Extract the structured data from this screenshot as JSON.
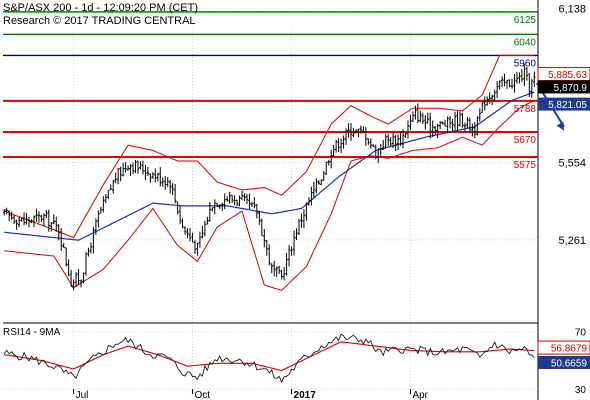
{
  "header": {
    "line1": "S&P/ASX 200 - 1d - 12:09:20 PM (CET)",
    "line2": "Research © 2017 TRADING CENTRAL"
  },
  "rsi_label": "RSI14 - 9MA",
  "colors": {
    "price": "#000000",
    "bollinger": "#d40000",
    "ma": "#1f2fa8",
    "resistance_green": "#008000",
    "pivot_blue": "#000080",
    "support_red": "#e00000",
    "arrow": "#1f3c8c",
    "grid": "#d8d8d8",
    "rsi_line": "#1a1a1a",
    "rsi_ma": "#d40000",
    "rsi_badge_red": "#d40000",
    "rsi_badge_blue": "#1f3c8c"
  },
  "chart_data": [
    {
      "type": "line",
      "name": "price",
      "ylim": [
        4950,
        6170
      ],
      "y_ticks": [
        {
          "value": 6138,
          "label": "6,138"
        },
        {
          "value": 5554,
          "label": "5,554"
        },
        {
          "value": 5261,
          "label": "5,261"
        }
      ],
      "x_ticks": [
        "Jul",
        "Oct",
        "2017",
        "Apr"
      ],
      "levels": [
        {
          "label": "6125",
          "value": 6125,
          "color": "green"
        },
        {
          "label": "6040",
          "value": 6040,
          "color": "green"
        },
        {
          "label": "5960",
          "value": 5960,
          "color": "blue"
        },
        {
          "label": "5788",
          "value": 5788,
          "color": "red"
        },
        {
          "label": "5670",
          "value": 5670,
          "color": "red"
        },
        {
          "label": "5575",
          "value": 5575,
          "color": "red"
        }
      ],
      "value_badges": [
        {
          "label": "5,885.63",
          "value": 5885.63,
          "color": "red"
        },
        {
          "label": "5,870.9",
          "value": 5870.9,
          "color": "black"
        },
        {
          "label": "5,821.05",
          "value": 5821.05,
          "color": "blue"
        }
      ],
      "close_knots": [
        [
          0,
          5360
        ],
        [
          8,
          5330
        ],
        [
          16,
          5350
        ],
        [
          22,
          5300
        ],
        [
          27,
          5100
        ],
        [
          31,
          5120
        ],
        [
          38,
          5350
        ],
        [
          45,
          5500
        ],
        [
          50,
          5550
        ],
        [
          56,
          5530
        ],
        [
          62,
          5500
        ],
        [
          67,
          5480
        ],
        [
          72,
          5310
        ],
        [
          78,
          5230
        ],
        [
          84,
          5400
        ],
        [
          90,
          5420
        ],
        [
          96,
          5410
        ],
        [
          102,
          5370
        ],
        [
          108,
          5150
        ],
        [
          112,
          5120
        ],
        [
          118,
          5300
        ],
        [
          124,
          5430
        ],
        [
          128,
          5500
        ],
        [
          132,
          5600
        ],
        [
          136,
          5640
        ],
        [
          140,
          5680
        ],
        [
          146,
          5660
        ],
        [
          150,
          5590
        ],
        [
          154,
          5640
        ],
        [
          160,
          5640
        ],
        [
          166,
          5740
        ],
        [
          172,
          5690
        ],
        [
          178,
          5700
        ],
        [
          184,
          5720
        ],
        [
          190,
          5680
        ],
        [
          194,
          5790
        ],
        [
          200,
          5850
        ],
        [
          206,
          5860
        ],
        [
          210,
          5890
        ],
        [
          212,
          5840
        ],
        [
          214,
          5870
        ]
      ],
      "ma_knots": [
        [
          0,
          5290
        ],
        [
          20,
          5270
        ],
        [
          30,
          5260
        ],
        [
          45,
          5330
        ],
        [
          60,
          5400
        ],
        [
          72,
          5390
        ],
        [
          90,
          5390
        ],
        [
          108,
          5360
        ],
        [
          120,
          5380
        ],
        [
          135,
          5500
        ],
        [
          150,
          5600
        ],
        [
          170,
          5650
        ],
        [
          190,
          5690
        ],
        [
          205,
          5790
        ],
        [
          214,
          5821
        ]
      ],
      "band_knots": [
        [
          0,
          5370,
          5220
        ],
        [
          20,
          5300,
          5200
        ],
        [
          28,
          5270,
          5080
        ],
        [
          40,
          5470,
          5150
        ],
        [
          50,
          5620,
          5260
        ],
        [
          60,
          5600,
          5380
        ],
        [
          70,
          5560,
          5240
        ],
        [
          78,
          5560,
          5180
        ],
        [
          86,
          5480,
          5310
        ],
        [
          96,
          5450,
          5370
        ],
        [
          105,
          5460,
          5090
        ],
        [
          112,
          5430,
          5070
        ],
        [
          122,
          5520,
          5160
        ],
        [
          132,
          5700,
          5360
        ],
        [
          140,
          5770,
          5560
        ],
        [
          148,
          5730,
          5580
        ],
        [
          155,
          5700,
          5570
        ],
        [
          165,
          5760,
          5600
        ],
        [
          175,
          5760,
          5610
        ],
        [
          185,
          5750,
          5650
        ],
        [
          193,
          5810,
          5620
        ],
        [
          200,
          5960,
          5690
        ],
        [
          208,
          5960,
          5760
        ],
        [
          214,
          5960,
          5790
        ]
      ],
      "forecast": {
        "from_bar": 215,
        "from": 5855,
        "to_bar": 226,
        "to": 5675
      }
    },
    {
      "type": "line",
      "name": "RSI14",
      "ylim": [
        28,
        74
      ],
      "y_ticks": [
        {
          "value": 70,
          "label": "70"
        },
        {
          "value": 30,
          "label": "30"
        }
      ],
      "value_badges": [
        {
          "label": "56.8679",
          "value": 56.8679,
          "color": "red"
        },
        {
          "label": "50.6659",
          "value": 50.6659,
          "color": "blue"
        }
      ],
      "rsi_knots": [
        [
          0,
          55
        ],
        [
          10,
          52
        ],
        [
          20,
          46
        ],
        [
          28,
          38
        ],
        [
          35,
          50
        ],
        [
          45,
          62
        ],
        [
          50,
          64
        ],
        [
          58,
          55
        ],
        [
          66,
          52
        ],
        [
          72,
          42
        ],
        [
          78,
          38
        ],
        [
          86,
          52
        ],
        [
          96,
          50
        ],
        [
          105,
          44
        ],
        [
          112,
          36
        ],
        [
          120,
          50
        ],
        [
          128,
          60
        ],
        [
          136,
          66
        ],
        [
          146,
          64
        ],
        [
          152,
          55
        ],
        [
          160,
          58
        ],
        [
          168,
          57
        ],
        [
          176,
          55
        ],
        [
          186,
          58
        ],
        [
          192,
          52
        ],
        [
          198,
          62
        ],
        [
          204,
          56
        ],
        [
          210,
          58
        ],
        [
          214,
          51
        ]
      ],
      "rsi_ma_knots": [
        [
          0,
          54
        ],
        [
          15,
          50
        ],
        [
          28,
          44
        ],
        [
          40,
          54
        ],
        [
          50,
          60
        ],
        [
          62,
          54
        ],
        [
          74,
          46
        ],
        [
          86,
          48
        ],
        [
          100,
          48
        ],
        [
          112,
          43
        ],
        [
          124,
          53
        ],
        [
          136,
          63
        ],
        [
          150,
          60
        ],
        [
          164,
          57
        ],
        [
          178,
          56
        ],
        [
          192,
          56
        ],
        [
          204,
          58
        ],
        [
          214,
          56.87
        ]
      ]
    }
  ]
}
